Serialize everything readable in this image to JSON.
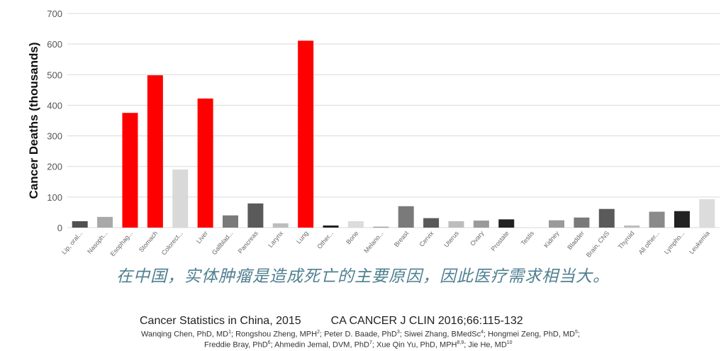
{
  "chart_data": {
    "type": "bar",
    "ylabel": "Cancer Deaths (thousands)",
    "xlabel": "",
    "ylim": [
      0,
      700
    ],
    "yticks": [
      0,
      100,
      200,
      300,
      400,
      500,
      600,
      700
    ],
    "grid": true,
    "categories": [
      "Lip, oral...",
      "Nasoph...",
      "Esophag...",
      "Stomach",
      "Colorect...",
      "Liver",
      "Gallblad...",
      "Pancreas",
      "Larynx",
      "Lung",
      "Other...",
      "Bone",
      "Melano...",
      "Breast",
      "Cervix",
      "Uterus",
      "Ovary",
      "Prostate",
      "Testis",
      "Kidney",
      "Bladder",
      "Brain, CNS",
      "Thyroid",
      "All other...",
      "Lympho...",
      "Leukemia"
    ],
    "values": [
      21,
      35,
      375,
      498,
      190,
      422,
      40,
      79,
      14,
      611,
      7,
      21,
      3,
      70,
      31,
      21,
      23,
      27,
      1,
      24,
      33,
      61,
      7,
      52,
      54,
      93
    ],
    "colors": [
      "#505050",
      "#a9a9a9",
      "#ff0000",
      "#ff0000",
      "#d9d9d9",
      "#ff0000",
      "#7a7a7a",
      "#5a5a5a",
      "#bdbdbd",
      "#ff0000",
      "#222222",
      "#dcdcdc",
      "#9a9a9a",
      "#7a7a7a",
      "#5a5a5a",
      "#bdbdbd",
      "#9a9a9a",
      "#222222",
      "#dcdcdc",
      "#9a9a9a",
      "#7a7a7a",
      "#5a5a5a",
      "#bdbdbd",
      "#8a8a8a",
      "#222222",
      "#dcdcdc"
    ]
  },
  "caption": "在中国，实体肿瘤是造成死亡的主要原因，因此医疗需求相当大。",
  "citation": {
    "title": "Cancer Statistics in China, 2015",
    "journal": "CA CANCER J CLIN 2016;66:115-132",
    "authors_line1": [
      {
        "t": "Wanqing Chen, PhD, MD",
        "s": "1"
      },
      {
        "t": "; Rongshou Zheng, MPH",
        "s": "2"
      },
      {
        "t": "; Peter D. Baade, PhD",
        "s": "3"
      },
      {
        "t": "; Siwei Zhang, BMedSc",
        "s": "4"
      },
      {
        "t": "; Hongmei Zeng, PhD, MD",
        "s": "5"
      },
      {
        "t": ";",
        "s": ""
      }
    ],
    "authors_line2": [
      {
        "t": "Freddie Bray, PhD",
        "s": "6"
      },
      {
        "t": "; Ahmedin Jemal, DVM, PhD",
        "s": "7"
      },
      {
        "t": "; Xue Qin Yu, PhD, MPH",
        "s": "8,9"
      },
      {
        "t": "; Jie He, MD",
        "s": "10"
      }
    ]
  }
}
